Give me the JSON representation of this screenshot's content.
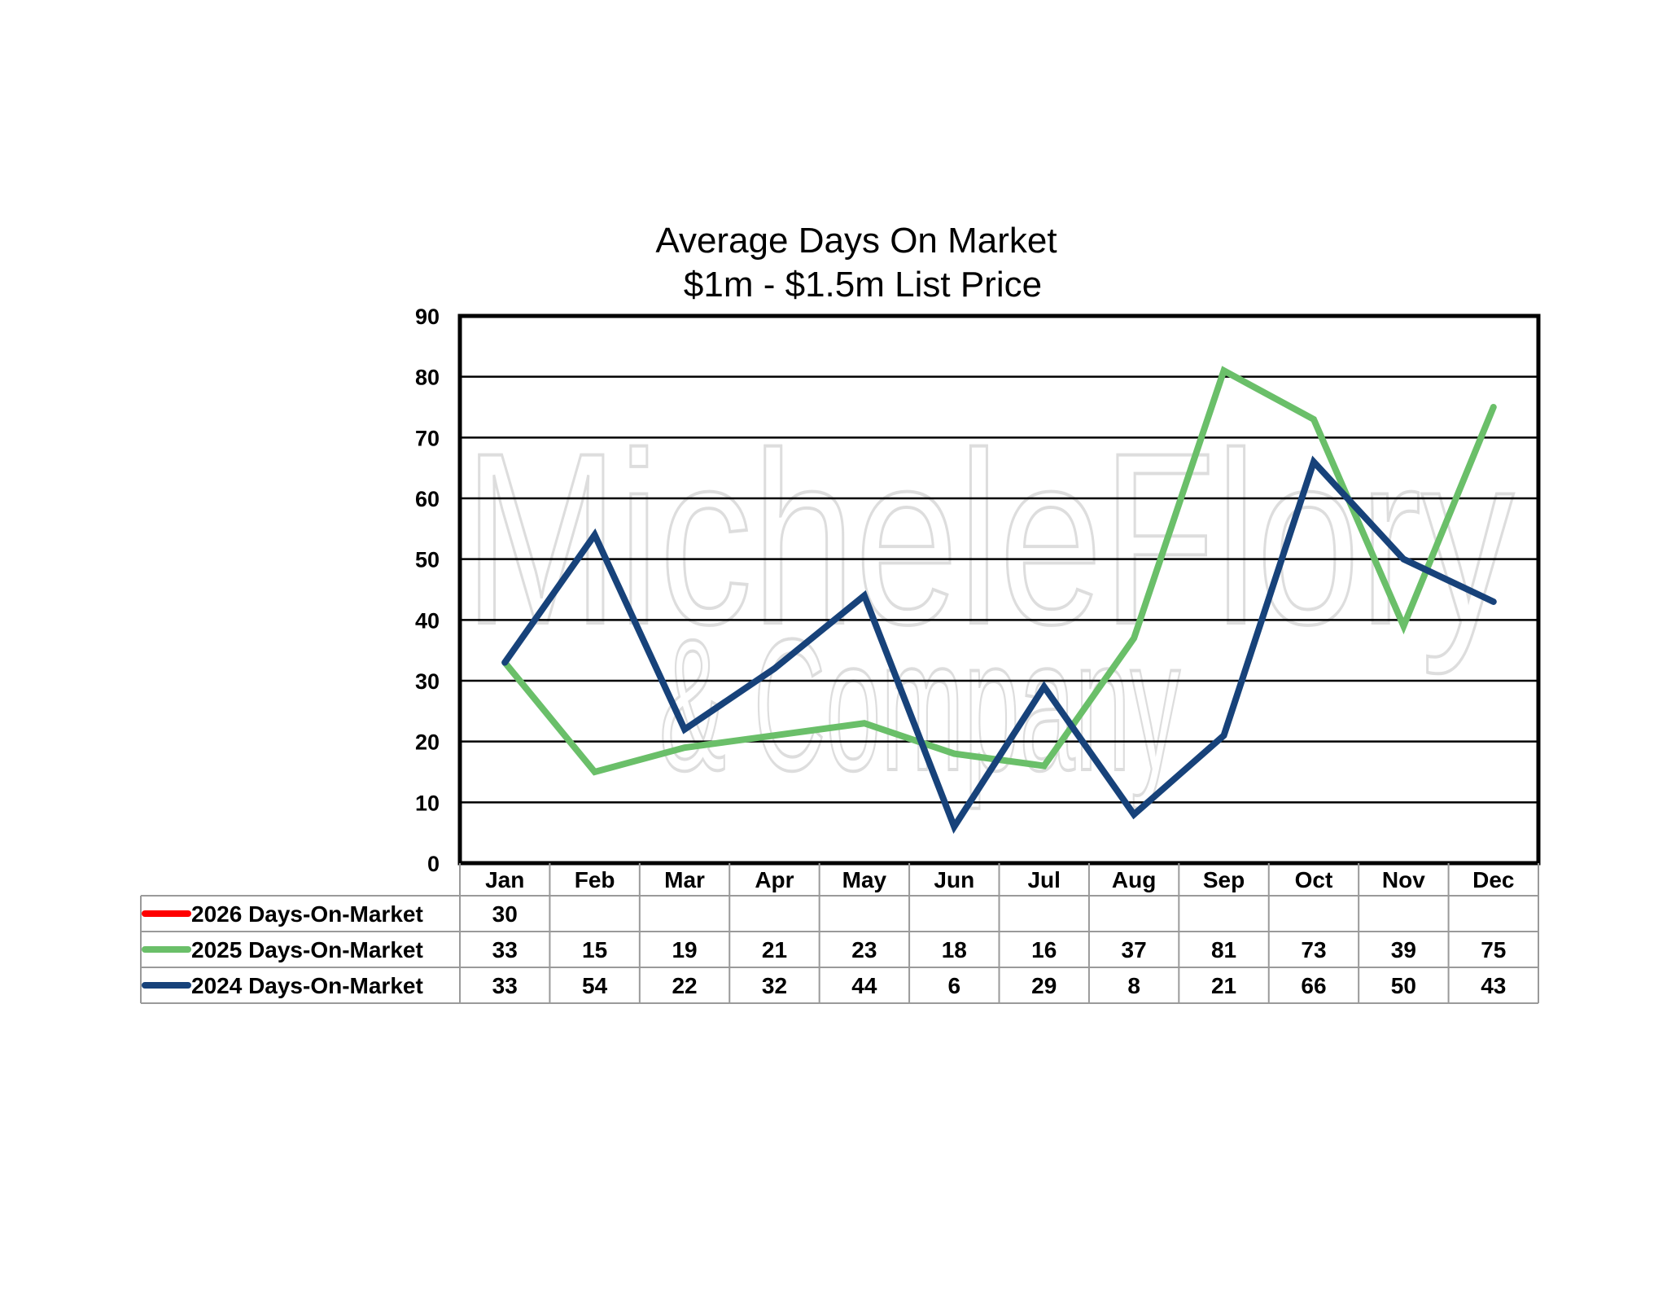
{
  "chart_data": {
    "type": "line",
    "title": "Average Days On Market",
    "subtitle": "$1m - $1.5m List Price",
    "categories": [
      "Jan",
      "Feb",
      "Mar",
      "Apr",
      "May",
      "Jun",
      "Jul",
      "Aug",
      "Sep",
      "Oct",
      "Nov",
      "Dec"
    ],
    "ylim": [
      0,
      90
    ],
    "yticks": [
      0,
      10,
      20,
      30,
      40,
      50,
      60,
      70,
      80,
      90
    ],
    "grid": true,
    "legend": "data-table-left",
    "watermark": [
      "MicheleFlory",
      "& Company"
    ],
    "series": [
      {
        "name": "2026 Days-On-Market",
        "color": "#ff0000",
        "values": [
          30,
          null,
          null,
          null,
          null,
          null,
          null,
          null,
          null,
          null,
          null,
          null
        ],
        "show_line": false
      },
      {
        "name": "2025 Days-On-Market",
        "color": "#6abf69",
        "values": [
          33,
          15,
          19,
          21,
          23,
          18,
          16,
          37,
          81,
          73,
          39,
          75
        ],
        "show_line": true
      },
      {
        "name": "2024 Days-On-Market",
        "color": "#17427a",
        "values": [
          33,
          54,
          22,
          32,
          44,
          6,
          29,
          8,
          21,
          66,
          50,
          43
        ],
        "show_line": true
      }
    ]
  }
}
